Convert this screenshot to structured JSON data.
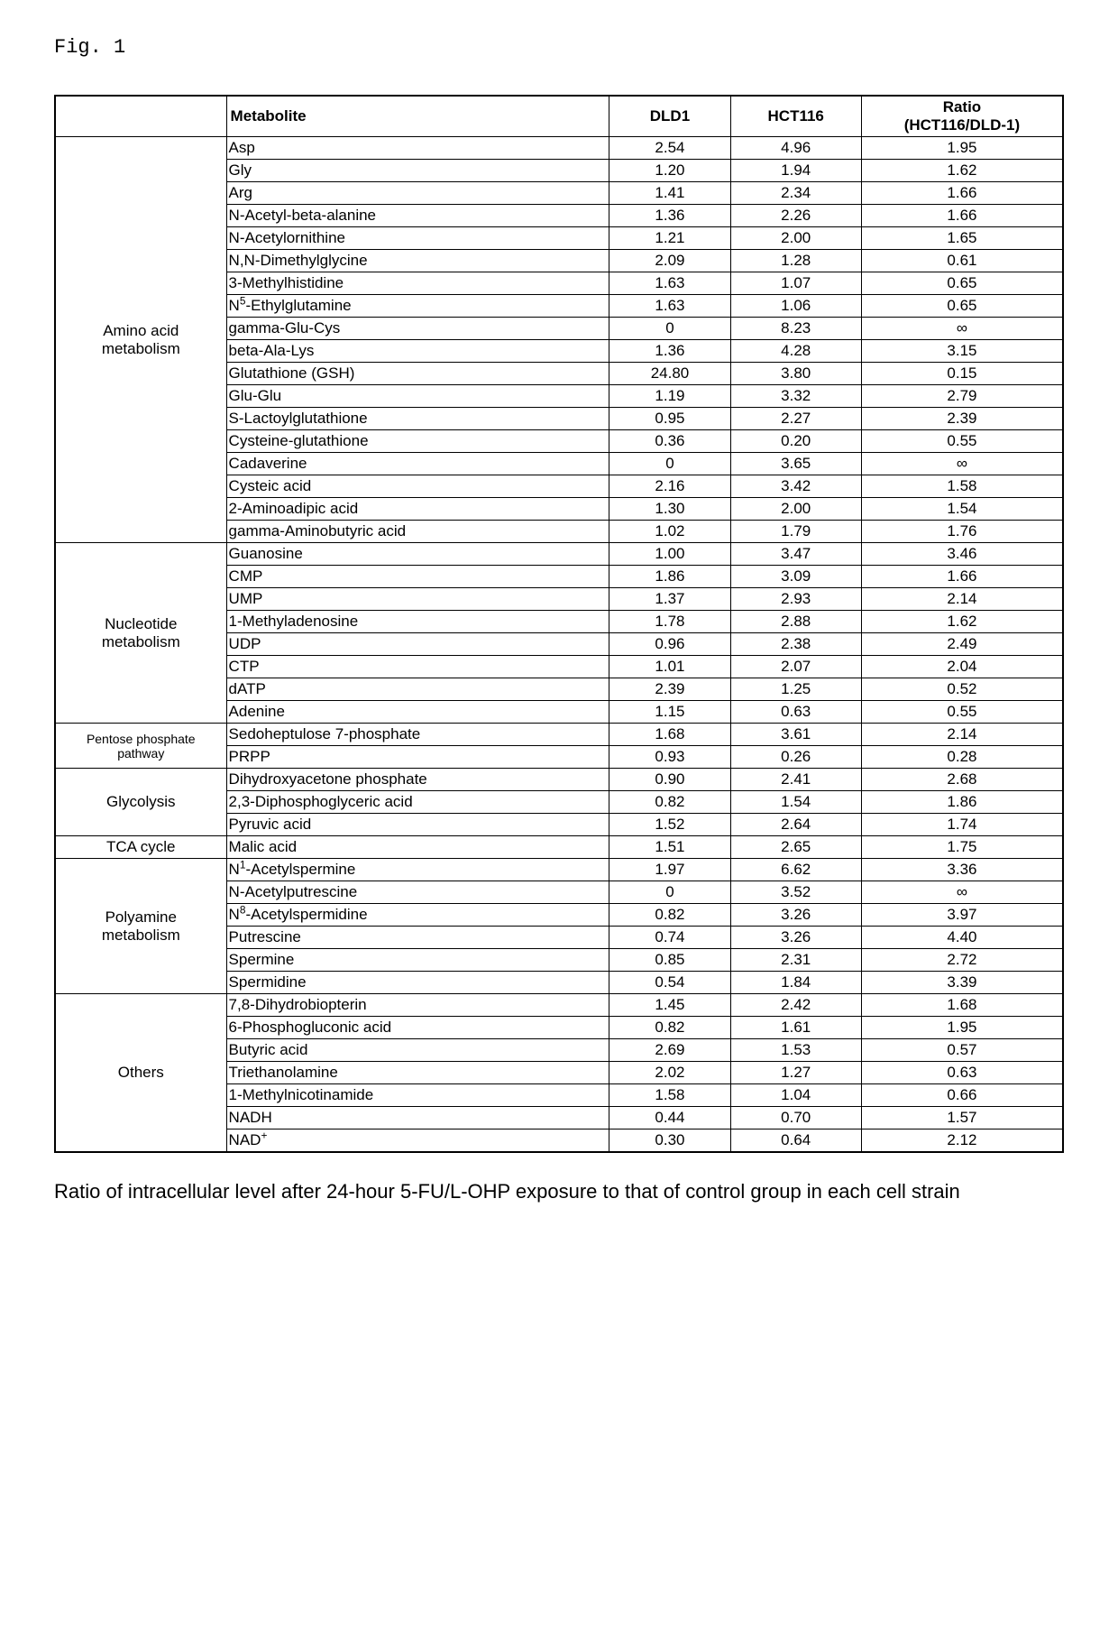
{
  "figure_label": "Fig. 1",
  "headers": {
    "metabolite": "Metabolite",
    "dld1": "DLD1",
    "hct116": "HCT116",
    "ratio_top": "Ratio",
    "ratio_bottom": "(HCT116/DLD-1)"
  },
  "categories": [
    {
      "name": "Amino acid\nmetabolism",
      "small": false,
      "rows": [
        {
          "m": "Asp",
          "d": "2.54",
          "h": "4.96",
          "r": "1.95"
        },
        {
          "m": "Gly",
          "d": "1.20",
          "h": "1.94",
          "r": "1.62"
        },
        {
          "m": "Arg",
          "d": "1.41",
          "h": "2.34",
          "r": "1.66"
        },
        {
          "m": "N-Acetyl-beta-alanine",
          "d": "1.36",
          "h": "2.26",
          "r": "1.66"
        },
        {
          "m": "N-Acetylornithine",
          "d": "1.21",
          "h": "2.00",
          "r": "1.65"
        },
        {
          "m": "N,N-Dimethylglycine",
          "d": "2.09",
          "h": "1.28",
          "r": "0.61"
        },
        {
          "m": "3-Methylhistidine",
          "d": "1.63",
          "h": "1.07",
          "r": "0.65"
        },
        {
          "m": "N<sup>5</sup>-Ethylglutamine",
          "d": "1.63",
          "h": "1.06",
          "r": "0.65"
        },
        {
          "m": "gamma-Glu-Cys",
          "d": "0",
          "h": "8.23",
          "r": "∞"
        },
        {
          "m": "beta-Ala-Lys",
          "d": "1.36",
          "h": "4.28",
          "r": "3.15"
        },
        {
          "m": "Glutathione (GSH)",
          "d": "24.80",
          "h": "3.80",
          "r": "0.15"
        },
        {
          "m": "Glu-Glu",
          "d": "1.19",
          "h": "3.32",
          "r": "2.79"
        },
        {
          "m": "S-Lactoylglutathione",
          "d": "0.95",
          "h": "2.27",
          "r": "2.39"
        },
        {
          "m": "Cysteine-glutathione",
          "d": "0.36",
          "h": "0.20",
          "r": "0.55"
        },
        {
          "m": "Cadaverine",
          "d": "0",
          "h": "3.65",
          "r": "∞"
        },
        {
          "m": "Cysteic acid",
          "d": "2.16",
          "h": "3.42",
          "r": "1.58"
        },
        {
          "m": "2-Aminoadipic acid",
          "d": "1.30",
          "h": "2.00",
          "r": "1.54"
        },
        {
          "m": "gamma-Aminobutyric acid",
          "d": "1.02",
          "h": "1.79",
          "r": "1.76"
        }
      ]
    },
    {
      "name": "Nucleotide\nmetabolism",
      "small": false,
      "rows": [
        {
          "m": "Guanosine",
          "d": "1.00",
          "h": "3.47",
          "r": "3.46"
        },
        {
          "m": "CMP",
          "d": "1.86",
          "h": "3.09",
          "r": "1.66"
        },
        {
          "m": "UMP",
          "d": "1.37",
          "h": "2.93",
          "r": "2.14"
        },
        {
          "m": "1-Methyladenosine",
          "d": "1.78",
          "h": "2.88",
          "r": "1.62"
        },
        {
          "m": "UDP",
          "d": "0.96",
          "h": "2.38",
          "r": "2.49"
        },
        {
          "m": "CTP",
          "d": "1.01",
          "h": "2.07",
          "r": "2.04"
        },
        {
          "m": "dATP",
          "d": "2.39",
          "h": "1.25",
          "r": "0.52"
        },
        {
          "m": "Adenine",
          "d": "1.15",
          "h": "0.63",
          "r": "0.55"
        }
      ]
    },
    {
      "name": "Pentose phosphate\npathway",
      "small": true,
      "rows": [
        {
          "m": "Sedoheptulose 7-phosphate",
          "d": "1.68",
          "h": "3.61",
          "r": "2.14"
        },
        {
          "m": "PRPP",
          "d": "0.93",
          "h": "0.26",
          "r": "0.28"
        }
      ]
    },
    {
      "name": "Glycolysis",
      "small": false,
      "rows": [
        {
          "m": "Dihydroxyacetone phosphate",
          "d": "0.90",
          "h": "2.41",
          "r": "2.68"
        },
        {
          "m": "2,3-Diphosphoglyceric acid",
          "d": "0.82",
          "h": "1.54",
          "r": "1.86"
        },
        {
          "m": "Pyruvic acid",
          "d": "1.52",
          "h": "2.64",
          "r": "1.74"
        }
      ]
    },
    {
      "name": "TCA cycle",
      "small": false,
      "rows": [
        {
          "m": "Malic acid",
          "d": "1.51",
          "h": "2.65",
          "r": "1.75"
        }
      ]
    },
    {
      "name": "Polyamine\nmetabolism",
      "small": false,
      "rows": [
        {
          "m": "N<sup>1</sup>-Acetylspermine",
          "d": "1.97",
          "h": "6.62",
          "r": "3.36"
        },
        {
          "m": "N-Acetylputrescine",
          "d": "0",
          "h": "3.52",
          "r": "∞"
        },
        {
          "m": "N<sup>8</sup>-Acetylspermidine",
          "d": "0.82",
          "h": "3.26",
          "r": "3.97"
        },
        {
          "m": "Putrescine",
          "d": "0.74",
          "h": "3.26",
          "r": "4.40"
        },
        {
          "m": "Spermine",
          "d": "0.85",
          "h": "2.31",
          "r": "2.72"
        },
        {
          "m": "Spermidine",
          "d": "0.54",
          "h": "1.84",
          "r": "3.39"
        }
      ]
    },
    {
      "name": "Others",
      "small": false,
      "rows": [
        {
          "m": "7,8-Dihydrobiopterin",
          "d": "1.45",
          "h": "2.42",
          "r": "1.68"
        },
        {
          "m": "6-Phosphogluconic acid",
          "d": "0.82",
          "h": "1.61",
          "r": "1.95"
        },
        {
          "m": "Butyric acid",
          "d": "2.69",
          "h": "1.53",
          "r": "0.57"
        },
        {
          "m": "Triethanolamine",
          "d": "2.02",
          "h": "1.27",
          "r": "0.63"
        },
        {
          "m": "1-Methylnicotinamide",
          "d": "1.58",
          "h": "1.04",
          "r": "0.66"
        },
        {
          "m": "NADH",
          "d": "0.44",
          "h": "0.70",
          "r": "1.57"
        },
        {
          "m": "NAD<sup>+</sup>",
          "d": "0.30",
          "h": "0.64",
          "r": "2.12"
        }
      ]
    }
  ],
  "caption": "Ratio of intracellular level after 24-hour 5-FU/L-OHP exposure to that of control group in each cell strain"
}
